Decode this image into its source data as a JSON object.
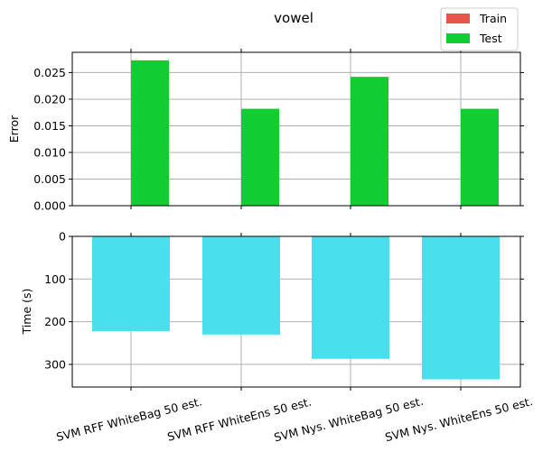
{
  "chart_data": [
    {
      "type": "bar",
      "title": "vowel",
      "categories": [
        "SVM RFF WhiteBag 50 est.",
        "SVM RFF WhiteEns 50 est.",
        "SVM Nys. WhiteBag 50 est.",
        "SVM Nys. WhiteEns 50 est."
      ],
      "ylabel": "Error",
      "ylim": [
        0,
        0.0288
      ],
      "yticks": [
        "0.000",
        "0.005",
        "0.010",
        "0.015",
        "0.020",
        "0.025"
      ],
      "grid": true,
      "legend": {
        "placement": "top-right",
        "entries": [
          "Train",
          "Test"
        ]
      },
      "series": [
        {
          "name": "Train",
          "color": "#e8554a",
          "values": [
            0,
            0,
            0,
            0
          ]
        },
        {
          "name": "Test",
          "color": "#11cc33",
          "values": [
            0.0273,
            0.0182,
            0.0242,
            0.0182
          ]
        }
      ]
    },
    {
      "type": "bar",
      "categories": [
        "SVM RFF WhiteBag 50 est.",
        "SVM RFF WhiteEns 50 est.",
        "SVM Nys. WhiteBag 50 est.",
        "SVM Nys. WhiteEns 50 est."
      ],
      "ylabel": "Time (s)",
      "ylim": [
        0,
        353
      ],
      "y_inverted": true,
      "yticks": [
        "0",
        "100",
        "200",
        "300"
      ],
      "grid": true,
      "series": [
        {
          "color": "#4adfed",
          "values": [
            222,
            230,
            287,
            335
          ]
        }
      ]
    }
  ]
}
